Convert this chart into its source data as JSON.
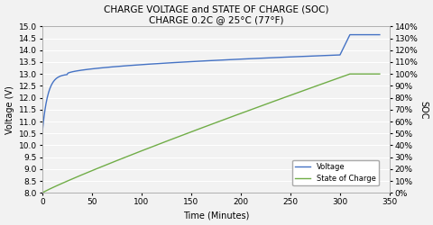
{
  "title_line1": "CHARGE VOLTAGE and STATE OF CHARGE (SOC)",
  "title_line2": "CHARGE 0.2C @ 25°C (77°F)",
  "xlabel": "Time (Minutes)",
  "ylabel_left": "Voltage (V)",
  "ylabel_right": "SOC",
  "xlim": [
    0,
    350
  ],
  "ylim_left": [
    8.0,
    15.0
  ],
  "ylim_right": [
    0.0,
    1.4
  ],
  "xticks": [
    0,
    50,
    100,
    150,
    200,
    250,
    300,
    350
  ],
  "yticks_left": [
    8.0,
    8.5,
    9.0,
    9.5,
    10.0,
    10.5,
    11.0,
    11.5,
    12.0,
    12.5,
    13.0,
    13.5,
    14.0,
    14.5,
    15.0
  ],
  "yticks_right_vals": [
    0.0,
    0.1,
    0.2,
    0.3,
    0.4,
    0.5,
    0.6,
    0.7,
    0.8,
    0.9,
    1.0,
    1.1,
    1.2,
    1.3,
    1.4
  ],
  "yticks_right_labels": [
    "0%",
    "10%",
    "20%",
    "30%",
    "40%",
    "50%",
    "60%",
    "70%",
    "80%",
    "90%",
    "100%",
    "110%",
    "120%",
    "130%",
    "140%"
  ],
  "voltage_color": "#4472c4",
  "soc_color": "#70ad47",
  "legend_voltage": "Voltage",
  "legend_soc": "State of Charge",
  "background_color": "#f2f2f2",
  "plot_bg_color": "#f2f2f2",
  "grid_color": "#ffffff",
  "title_fontsize": 7.5,
  "label_fontsize": 7,
  "tick_fontsize": 6.5
}
